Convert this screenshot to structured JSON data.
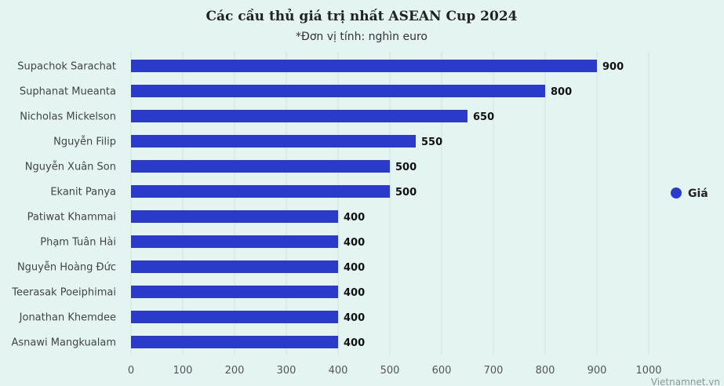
{
  "chart_data": {
    "type": "bar",
    "orientation": "horizontal",
    "title": "Các cầu thủ giá trị nhất ASEAN Cup 2024",
    "subtitle": "*Đơn vị tính: nghìn euro",
    "categories": [
      "Supachok Sarachat",
      "Suphanat Mueanta",
      "Nicholas Mickelson",
      "Nguyễn Filip",
      "Nguyễn Xuân Son",
      "Ekanit Panya",
      "Patiwat Khammai",
      "Phạm Tuân Hài",
      "Nguyễn Hoàng Đức",
      "Teerasak Poeiphimai",
      "Jonathan Khemdee",
      "Asnawi Mangkualam"
    ],
    "series": [
      {
        "name": "Giá",
        "values": [
          900,
          800,
          650,
          550,
          500,
          500,
          400,
          400,
          400,
          400,
          400,
          400
        ]
      }
    ],
    "xlim": [
      0,
      1000
    ],
    "xticks": [
      0,
      100,
      200,
      300,
      400,
      500,
      600,
      700,
      800,
      900,
      1000
    ],
    "grid": true,
    "legend": "right",
    "bar_color": "#2a3bcc",
    "credit": "Vietnamnet.vn"
  }
}
